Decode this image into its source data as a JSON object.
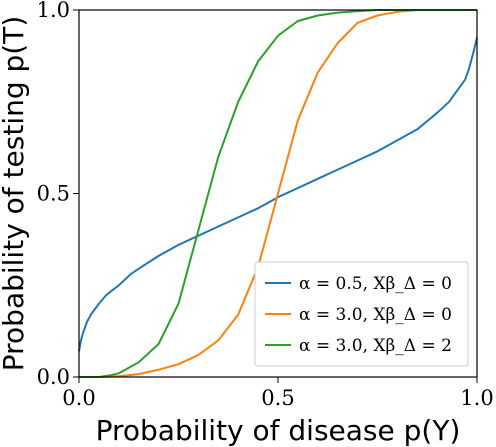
{
  "chart_data": {
    "type": "line",
    "xlabel": "Probability of disease p(Y)",
    "ylabel": "Probability of testing p(T)",
    "xlim": [
      0.0,
      1.0
    ],
    "ylim": [
      0.0,
      1.0
    ],
    "xticks": [
      {
        "value": 0.0,
        "label": "0.0"
      },
      {
        "value": 0.5,
        "label": "0.5"
      },
      {
        "value": 1.0,
        "label": "1.0"
      }
    ],
    "yticks": [
      {
        "value": 0.0,
        "label": "0.0"
      },
      {
        "value": 0.5,
        "label": "0.5"
      },
      {
        "value": 1.0,
        "label": "1.0"
      }
    ],
    "grid": false,
    "legend_position": "lower-right",
    "series": [
      {
        "name": "α = 0.5, Xβ_Δ = 0",
        "color": "#1f77b4",
        "x": [
          0.0,
          0.005,
          0.01,
          0.02,
          0.03,
          0.05,
          0.07,
          0.1,
          0.13,
          0.15,
          0.2,
          0.25,
          0.3,
          0.35,
          0.4,
          0.45,
          0.5,
          0.55,
          0.6,
          0.65,
          0.7,
          0.75,
          0.8,
          0.85,
          0.9,
          0.93,
          0.95,
          0.97,
          0.98,
          0.99,
          1.0
        ],
        "y": [
          0.07,
          0.1,
          0.12,
          0.15,
          0.17,
          0.2,
          0.225,
          0.25,
          0.28,
          0.295,
          0.33,
          0.36,
          0.385,
          0.41,
          0.435,
          0.46,
          0.49,
          0.515,
          0.54,
          0.565,
          0.59,
          0.615,
          0.645,
          0.675,
          0.72,
          0.75,
          0.78,
          0.81,
          0.84,
          0.88,
          0.925
        ]
      },
      {
        "name": "α = 3.0, Xβ_Δ = 0",
        "color": "#ff7f0e",
        "x": [
          0.0,
          0.05,
          0.1,
          0.15,
          0.2,
          0.25,
          0.3,
          0.35,
          0.4,
          0.45,
          0.5,
          0.55,
          0.6,
          0.65,
          0.7,
          0.75,
          0.8,
          0.85,
          0.9,
          0.95,
          1.0
        ],
        "y": [
          0.0,
          0.0,
          0.002,
          0.008,
          0.02,
          0.035,
          0.06,
          0.1,
          0.17,
          0.3,
          0.5,
          0.7,
          0.83,
          0.91,
          0.965,
          0.985,
          0.995,
          1.0,
          1.0,
          1.0,
          1.0
        ]
      },
      {
        "name": "α = 3.0, Xβ_Δ = 2",
        "color": "#2ca02c",
        "x": [
          0.0,
          0.05,
          0.08,
          0.1,
          0.15,
          0.2,
          0.25,
          0.3,
          0.35,
          0.4,
          0.45,
          0.5,
          0.55,
          0.6,
          0.65,
          0.7,
          0.75,
          0.8,
          0.85,
          0.9,
          0.95,
          1.0
        ],
        "y": [
          0.0,
          0.0,
          0.005,
          0.01,
          0.04,
          0.09,
          0.2,
          0.4,
          0.6,
          0.75,
          0.86,
          0.93,
          0.97,
          0.985,
          0.993,
          0.997,
          1.0,
          1.0,
          1.0,
          1.0,
          1.0,
          1.0
        ]
      }
    ]
  }
}
